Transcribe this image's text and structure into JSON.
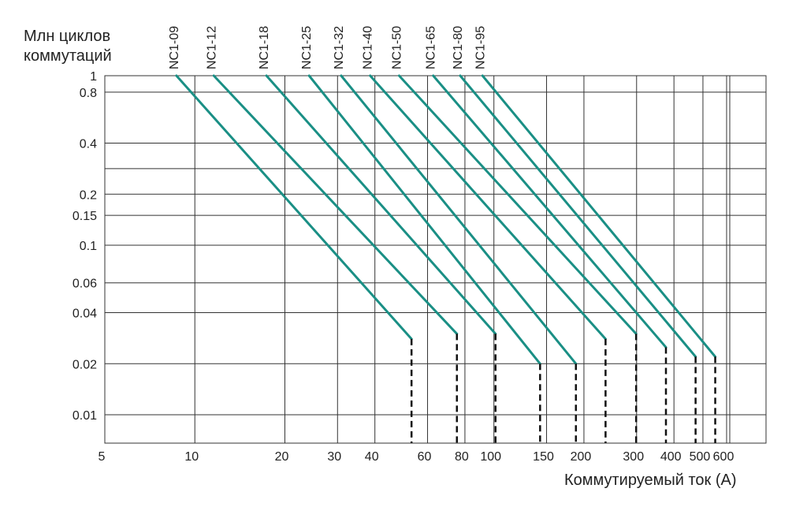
{
  "chart_data": {
    "type": "line",
    "ylabel": "Млн циклов коммутаций",
    "xlabel": "Коммутируемый ток (А)",
    "x_scale": "log",
    "y_scale": "log",
    "xlim": [
      5,
      600
    ],
    "ylim": [
      0.01,
      1
    ],
    "grid": true,
    "x_ticks": [
      {
        "value": 5,
        "label": "5"
      },
      {
        "value": 10,
        "label": "10"
      },
      {
        "value": 20,
        "label": "20"
      },
      {
        "value": 30,
        "label": "30"
      },
      {
        "value": 40,
        "label": "40"
      },
      {
        "value": 60,
        "label": "60"
      },
      {
        "value": 80,
        "label": "80"
      },
      {
        "value": 100,
        "label": "100"
      },
      {
        "value": 150,
        "label": "150"
      },
      {
        "value": 200,
        "label": "200"
      },
      {
        "value": 300,
        "label": "300"
      },
      {
        "value": 400,
        "label": "400"
      },
      {
        "value": 500,
        "label": "500"
      },
      {
        "value": 600,
        "label": "600"
      }
    ],
    "y_ticks": [
      {
        "value": 1,
        "label": "1"
      },
      {
        "value": 0.8,
        "label": "0.8"
      },
      {
        "value": 0.4,
        "label": "0.4"
      },
      {
        "value": 0.2,
        "label": "0.2"
      },
      {
        "value": 0.15,
        "label": "0.15"
      },
      {
        "value": 0.1,
        "label": "0.1"
      },
      {
        "value": 0.06,
        "label": "0.06"
      },
      {
        "value": 0.04,
        "label": "0.04"
      },
      {
        "value": 0.02,
        "label": "0.02"
      },
      {
        "value": 0.01,
        "label": "0.01"
      }
    ],
    "series": [
      {
        "name": "NC1-09",
        "x": [
          9,
          55
        ],
        "y": [
          1,
          0.028
        ],
        "drop_to_x": 55
      },
      {
        "name": "NC1-12",
        "x": [
          12,
          78
        ],
        "y": [
          1,
          0.03
        ],
        "drop_to_x": 78
      },
      {
        "name": "NC1-18",
        "x": [
          18,
          105
        ],
        "y": [
          1,
          0.03
        ],
        "drop_to_x": 105
      },
      {
        "name": "NC1-25",
        "x": [
          25,
          148
        ],
        "y": [
          1,
          0.02
        ],
        "drop_to_x": 148
      },
      {
        "name": "NC1-32",
        "x": [
          32,
          195
        ],
        "y": [
          1,
          0.02
        ],
        "drop_to_x": 195
      },
      {
        "name": "NC1-40",
        "x": [
          40,
          245
        ],
        "y": [
          1,
          0.028
        ],
        "drop_to_x": 245
      },
      {
        "name": "NC1-50",
        "x": [
          50,
          310
        ],
        "y": [
          1,
          0.03
        ],
        "drop_to_x": 310
      },
      {
        "name": "NC1-65",
        "x": [
          65,
          390
        ],
        "y": [
          1,
          0.025
        ],
        "drop_to_x": 390
      },
      {
        "name": "NC1-80",
        "x": [
          80,
          490
        ],
        "y": [
          1,
          0.022
        ],
        "drop_to_x": 490
      },
      {
        "name": "NC1-95",
        "x": [
          95,
          570
        ],
        "y": [
          1,
          0.022
        ],
        "drop_to_x": 570
      }
    ],
    "line_color": "#1a8f85",
    "drop_line_style": "dashed",
    "drop_line_color": "#111111",
    "grid_color": "#333333"
  }
}
